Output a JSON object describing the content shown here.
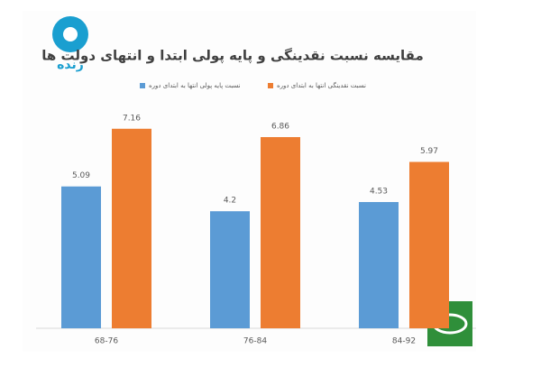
{
  "logo": {
    "label": "زنده"
  },
  "chart_data": {
    "type": "bar",
    "title": "مقایسه نسبت نقدینگی و پایه پولی ابتدا و انتهای دولت ها",
    "categories": [
      "68-76",
      "76-84",
      "84-92"
    ],
    "series": [
      {
        "name": "نسبت پایه پولی انتها به ابتدای دوره",
        "color": "#5b9bd5",
        "values": [
          5.09,
          4.2,
          4.53
        ]
      },
      {
        "name": "نسبت نقدینگی انتها به ابتدای دوره",
        "color": "#ed7d31",
        "values": [
          7.16,
          6.86,
          5.97
        ]
      }
    ]
  }
}
